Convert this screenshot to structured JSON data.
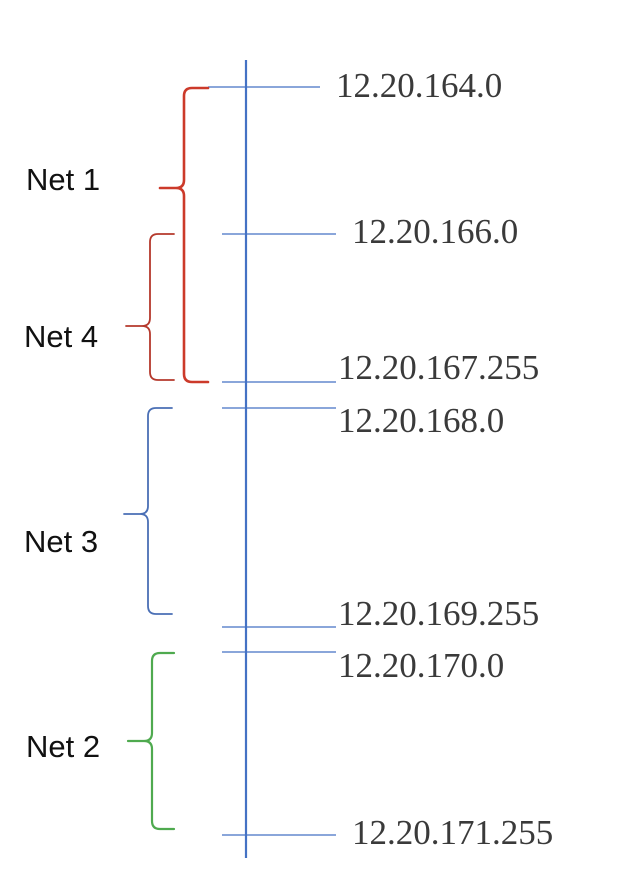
{
  "colors": {
    "axis": "#4472c4",
    "tick": "#4472c4",
    "net1": "#cc3a2a",
    "net4": "#b5392c",
    "net3": "#4a6fb5",
    "net2": "#4faa4f",
    "text": "#3a3a3a"
  },
  "addresses": [
    "12.20.164.0",
    "12.20.166.0",
    "12.20.167.255",
    "12.20.168.0",
    "12.20.169.255",
    "12.20.170.0",
    "12.20.171.255"
  ],
  "networks": [
    {
      "name": "Net 1",
      "start": "12.20.164.0",
      "end": "12.20.167.255",
      "color_key": "net1"
    },
    {
      "name": "Net 4",
      "start": "12.20.166.0",
      "end": "12.20.167.255",
      "color_key": "net4"
    },
    {
      "name": "Net 3",
      "start": "12.20.168.0",
      "end": "12.20.169.255",
      "color_key": "net3"
    },
    {
      "name": "Net 2",
      "start": "12.20.170.0",
      "end": "12.20.171.255",
      "color_key": "net2"
    }
  ]
}
